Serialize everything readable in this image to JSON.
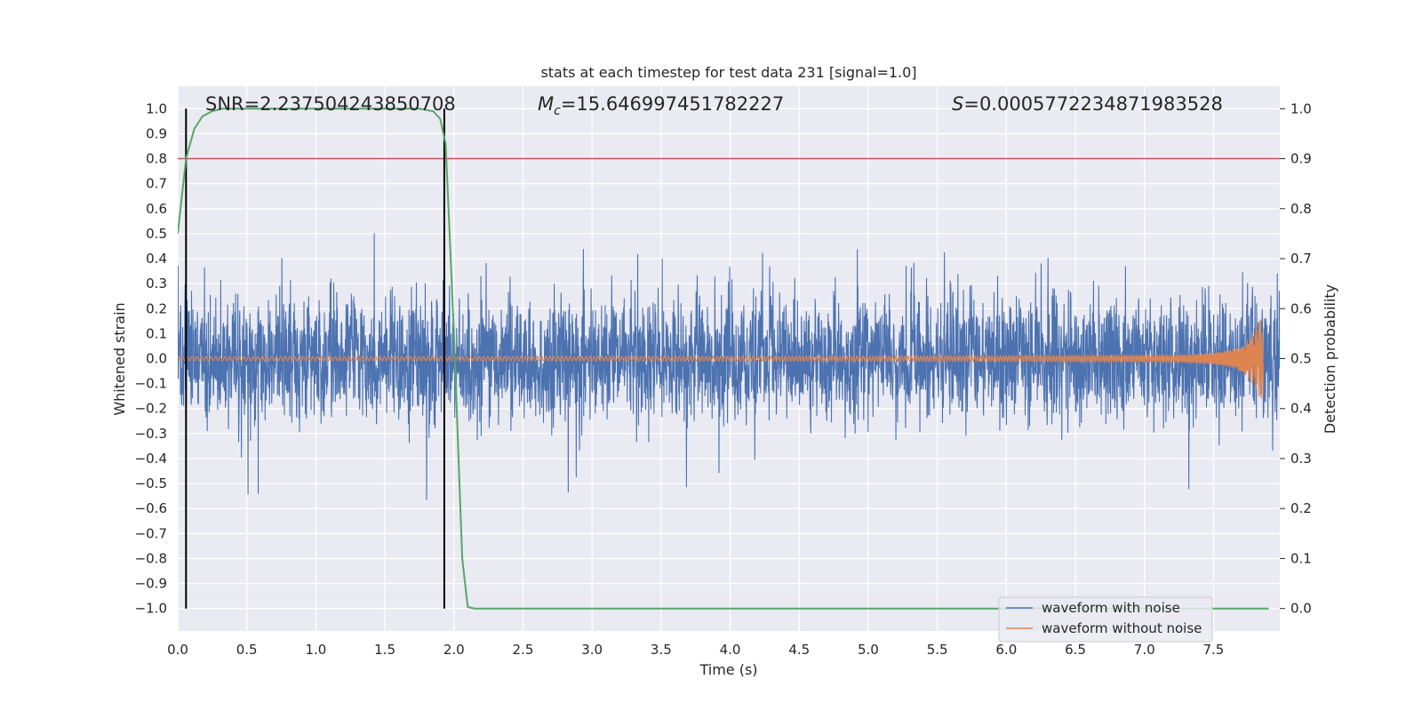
{
  "chart_data": {
    "type": "line",
    "title": "stats at each timestep for test data 231 [signal=1.0]",
    "xlabel": "Time (s)",
    "ylabel_left": "Whitened strain",
    "ylabel_right": "Detection probability",
    "xlim": [
      0.0,
      7.98
    ],
    "ylim_left": [
      -1.09,
      1.09
    ],
    "ylim_right": [
      -0.045,
      1.045
    ],
    "x_ticks": [
      0.0,
      0.5,
      1.0,
      1.5,
      2.0,
      2.5,
      3.0,
      3.5,
      4.0,
      4.5,
      5.0,
      5.5,
      6.0,
      6.5,
      7.0,
      7.5
    ],
    "x_tick_labels": [
      "0.0",
      "0.5",
      "1.0",
      "1.5",
      "2.0",
      "2.5",
      "3.0",
      "3.5",
      "4.0",
      "4.5",
      "5.0",
      "5.5",
      "6.0",
      "6.5",
      "7.0",
      "7.5"
    ],
    "y_left_ticks": [
      1.0,
      0.9,
      0.8,
      0.7,
      0.6,
      0.5,
      0.4,
      0.3,
      0.2,
      0.1,
      0.0,
      -0.1,
      -0.2,
      -0.3,
      -0.4,
      -0.5,
      -0.6,
      -0.7,
      -0.8,
      -0.9,
      -1.0
    ],
    "y_left_tick_labels": [
      "1.0",
      "0.9",
      "0.8",
      "0.7",
      "0.6",
      "0.5",
      "0.4",
      "0.3",
      "0.2",
      "0.1",
      "0.0",
      "−0.1",
      "−0.2",
      "−0.3",
      "−0.4",
      "−0.5",
      "−0.6",
      "−0.7",
      "−0.8",
      "−0.9",
      "−1.0"
    ],
    "y_right_ticks": [
      1.0,
      0.9,
      0.8,
      0.7,
      0.6,
      0.5,
      0.4,
      0.3,
      0.2,
      0.1,
      0.0
    ],
    "y_right_tick_labels": [
      "1.0",
      "0.9",
      "0.8",
      "0.7",
      "0.6",
      "0.5",
      "0.4",
      "0.3",
      "0.2",
      "0.1",
      "0.0"
    ],
    "annotations": {
      "snr": "SNR=2.237504243850708",
      "mc_symbol": "M",
      "mc_subscript": "c",
      "mc_value": "=15.646997451782227",
      "s_symbol": "S",
      "s_value": "=0.0005772234871983528"
    },
    "series": [
      {
        "name": "waveform with noise",
        "color": "#4c72b0",
        "axis": "left",
        "description_range": [
          -1.0,
          1.0
        ],
        "x_range": [
          0.0,
          7.98
        ]
      },
      {
        "name": "waveform without noise",
        "color": "#dd8452",
        "axis": "left",
        "chirp_peak": [
          0.16,
          -0.13
        ],
        "chirp_end_x": 7.86
      },
      {
        "name": "detection probability",
        "color": "#55a868",
        "axis": "right",
        "x": [
          0.0,
          0.06,
          0.12,
          0.18,
          0.25,
          0.32,
          0.4,
          0.6,
          0.8,
          1.0,
          1.2,
          1.4,
          1.6,
          1.75,
          1.85,
          1.9,
          1.94,
          2.0,
          2.06,
          2.1,
          2.15,
          2.2,
          3.0,
          4.0,
          5.0,
          6.0,
          7.0,
          7.5,
          7.9
        ],
        "values": [
          0.75,
          0.9,
          0.96,
          0.985,
          0.995,
          1.0,
          1.0,
          1.0,
          1.0,
          1.0,
          1.0,
          1.0,
          1.0,
          1.0,
          0.995,
          0.98,
          0.93,
          0.55,
          0.1,
          0.003,
          0.0,
          0.0,
          0.0,
          0.0,
          0.0,
          0.0,
          0.0,
          0.0,
          0.0
        ]
      }
    ],
    "threshold_line": {
      "y": 0.8,
      "axis": "left",
      "color": "#c44e52"
    },
    "vertical_lines": [
      0.06,
      1.93
    ],
    "legend": {
      "placement": "bottom-right",
      "entries": [
        "waveform with noise",
        "waveform without noise"
      ]
    }
  }
}
